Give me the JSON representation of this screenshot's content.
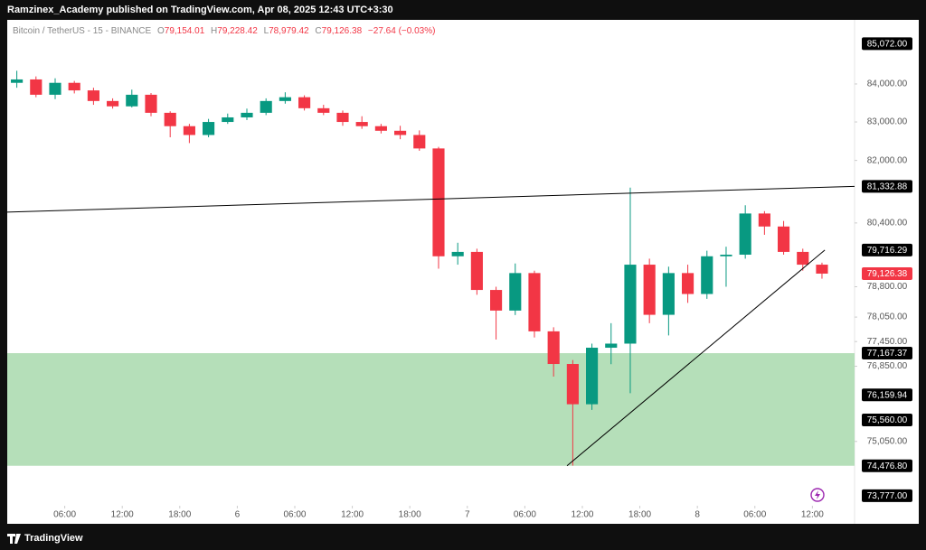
{
  "chart_data": {
    "type": "candlestick",
    "title": "Ramzinex_Academy published on TradingView.com, Apr 08, 2025 12:43 UTC+3:30",
    "symbol": "Bitcoin / TetherUS - 15 - BINANCE",
    "info": [
      {
        "prefix": "O",
        "text": "79,154.01"
      },
      {
        "prefix": "H",
        "text": "79,228.42"
      },
      {
        "prefix": "L",
        "text": "78,979.42"
      },
      {
        "prefix": "C",
        "text": "79,126.38"
      }
    ],
    "change": "−27.64 (−0.03%)",
    "footer": "TradingView",
    "log_scale": true,
    "up_color": "#089981",
    "down_color": "#f23645",
    "xlim": [
      0,
      88.4
    ],
    "ylim": [
      73127,
      85714
    ],
    "xticks": [
      {
        "value": 6,
        "label": "06:00"
      },
      {
        "value": 12,
        "label": "12:00"
      },
      {
        "value": 18,
        "label": "18:00"
      },
      {
        "value": 24,
        "label": "6"
      },
      {
        "value": 30,
        "label": "06:00"
      },
      {
        "value": 36,
        "label": "12:00"
      },
      {
        "value": 42,
        "label": "18:00"
      },
      {
        "value": 48,
        "label": "7"
      },
      {
        "value": 54,
        "label": "06:00"
      },
      {
        "value": 60,
        "label": "12:00"
      },
      {
        "value": 66,
        "label": "18:00"
      },
      {
        "value": 72,
        "label": "8"
      },
      {
        "value": 78,
        "label": "06:00"
      },
      {
        "value": 84,
        "label": "12:00"
      }
    ],
    "yticks": [
      {
        "value": 84000,
        "label": "84,000.00"
      },
      {
        "value": 83000,
        "label": "83,000.00"
      },
      {
        "value": 82000,
        "label": "82,000.00"
      },
      {
        "value": 80400,
        "label": "80,400.00"
      },
      {
        "value": 78800,
        "label": "78,800.00"
      },
      {
        "value": 78050,
        "label": "78,050.00"
      },
      {
        "value": 77450,
        "label": "77,450.00"
      },
      {
        "value": 76850,
        "label": "76,850.00"
      },
      {
        "value": 75050,
        "label": "75,050.00"
      }
    ],
    "price_labels": [
      {
        "value": 85072,
        "label": "85,072.00",
        "color": "#000000"
      },
      {
        "value": 81332.88,
        "label": "81,332.88",
        "color": "#000000"
      },
      {
        "value": 79716.29,
        "label": "79,716.29",
        "color": "#000000"
      },
      {
        "value": 79126.38,
        "label": "79,126.38",
        "color": "#f23645"
      },
      {
        "value": 77167.37,
        "label": "77,167.37",
        "color": "#000000"
      },
      {
        "value": 76159.94,
        "label": "76,159.94",
        "color": "#000000"
      },
      {
        "value": 75560,
        "label": "75,560.00",
        "color": "#000000"
      },
      {
        "value": 74476.8,
        "label": "74,476.80",
        "color": "#000000"
      },
      {
        "value": 73777,
        "label": "73,777.00",
        "color": "#000000"
      }
    ],
    "zone": {
      "y": [
        74476.8,
        77167.37
      ],
      "color": "#b5dfb9"
    },
    "lines": [
      {
        "x": [
          0,
          88.4
        ],
        "y": [
          80674,
          81332.88
        ],
        "color": "#000000"
      },
      {
        "x": [
          58.4,
          85.3
        ],
        "y": [
          74476.8,
          79716.29
        ],
        "color": "#000000"
      }
    ],
    "candles": {
      "x": [
        1,
        3,
        5,
        7,
        9,
        11,
        13,
        15,
        17,
        19,
        21,
        23,
        25,
        27,
        29,
        31,
        33,
        35,
        37,
        39,
        41,
        43,
        45,
        47,
        49,
        51,
        53,
        55,
        57,
        59,
        61,
        63,
        65,
        67,
        69,
        71,
        73,
        75,
        77,
        79,
        81,
        83,
        85
      ],
      "open": [
        84030,
        84120,
        83715,
        84030,
        83830,
        83550,
        83410,
        83715,
        83240,
        82890,
        82660,
        83000,
        83120,
        83240,
        83550,
        83650,
        83360,
        83240,
        83000,
        82890,
        82770,
        82660,
        82310,
        79560,
        79670,
        78720,
        78210,
        79140,
        77700,
        76905,
        75935,
        77300,
        77400,
        79350,
        78106,
        79140,
        78620,
        79560,
        79600,
        80640,
        80310,
        79670,
        79350
      ],
      "high": [
        84350,
        84200,
        84150,
        84080,
        83900,
        83620,
        83850,
        83760,
        83280,
        82950,
        83080,
        83220,
        83350,
        83620,
        83780,
        83700,
        83450,
        83300,
        83150,
        82950,
        82900,
        82780,
        82350,
        79900,
        79750,
        78800,
        79380,
        79200,
        77800,
        77000,
        77400,
        77900,
        81300,
        79500,
        79300,
        79350,
        79700,
        79800,
        80850,
        80700,
        80450,
        79750,
        79400
      ],
      "low": [
        83900,
        83650,
        83600,
        83750,
        83450,
        83350,
        83380,
        83150,
        82600,
        82450,
        82600,
        82950,
        83050,
        83180,
        83480,
        83300,
        83180,
        82900,
        82820,
        82700,
        82550,
        82250,
        79250,
        79350,
        78600,
        77500,
        78100,
        77550,
        76600,
        74480,
        75800,
        76900,
        76200,
        77900,
        77600,
        78400,
        78500,
        78800,
        79500,
        80100,
        79600,
        79200,
        79000
      ],
      "close": [
        84120,
        83715,
        84030,
        83830,
        83550,
        83410,
        83715,
        83240,
        82890,
        82660,
        83000,
        83120,
        83240,
        83550,
        83650,
        83360,
        83240,
        83000,
        82890,
        82770,
        82660,
        82310,
        79560,
        79670,
        78720,
        78210,
        79140,
        77700,
        76905,
        75935,
        77300,
        77400,
        79350,
        78106,
        79140,
        78620,
        79560,
        79600,
        80640,
        80310,
        79670,
        79350,
        79126.38
      ]
    }
  }
}
